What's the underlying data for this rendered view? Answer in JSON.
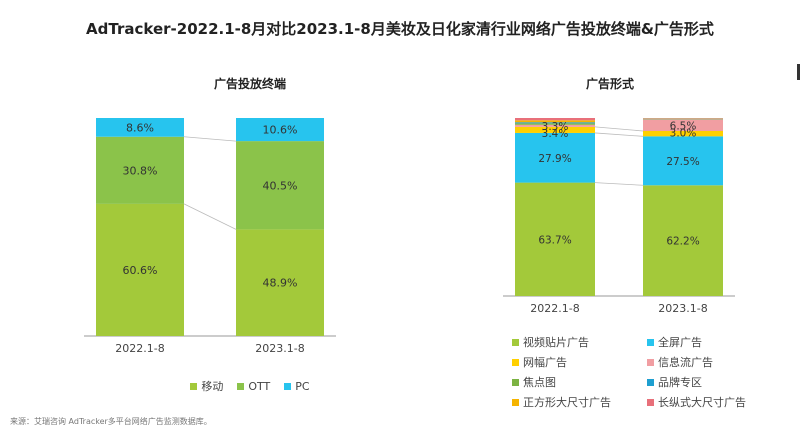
{
  "title": "AdTracker-2022.1-8月对比2023.1-8月美妆及日化家清行业网络广告投放终端&广告形式",
  "source": "来源：艾瑞咨询 AdTracker多平台网络广告监测数据库。",
  "chart_data": [
    {
      "type": "bar",
      "stacked": true,
      "title": "广告投放终端",
      "categories": [
        "2022.1-8",
        "2023.1-8"
      ],
      "ylim": [
        0,
        100
      ],
      "legend_position": "bottom",
      "series": [
        {
          "name": "移动",
          "color": "#a3c93a",
          "values": [
            60.6,
            48.9
          ]
        },
        {
          "name": "OTT",
          "color": "#8bc34a",
          "values": [
            30.8,
            40.5
          ]
        },
        {
          "name": "PC",
          "color": "#27c4ee",
          "values": [
            8.6,
            10.6
          ]
        }
      ]
    },
    {
      "type": "bar",
      "stacked": true,
      "title": "广告形式",
      "categories": [
        "2022.1-8",
        "2023.1-8"
      ],
      "ylim": [
        0,
        100
      ],
      "legend_position": "bottom",
      "series": [
        {
          "name": "视频贴片广告",
          "color": "#a3c93a",
          "values": [
            63.7,
            62.2
          ]
        },
        {
          "name": "全屏广告",
          "color": "#27c4ee",
          "values": [
            27.9,
            27.5
          ]
        },
        {
          "name": "网幅广告",
          "color": "#ffd000",
          "values": [
            3.4,
            3.0
          ]
        },
        {
          "name": "信息流广告",
          "color": "#f19ea2",
          "values": [
            1.2,
            6.5
          ]
        },
        {
          "name": "焦点图",
          "color": "#7cb342",
          "values": [
            0.8,
            0.2
          ]
        },
        {
          "name": "品牌专区",
          "color": "#1e9fd0",
          "values": [
            0.6,
            0.2
          ]
        },
        {
          "name": "正方形大尺寸广告",
          "color": "#f5b400",
          "values": [
            1.1,
            0.2
          ]
        },
        {
          "name": "长纵式大尺寸广告",
          "color": "#e8707a",
          "values": [
            1.3,
            0.2
          ]
        }
      ],
      "labels": [
        [
          "3.3%",
          "27.9%",
          "63.7%",
          "3.4%"
        ],
        [
          "6.5%",
          "27.5%",
          "62.2%",
          "3.0%"
        ]
      ]
    }
  ],
  "left_labels": [
    [
      "60.6%",
      "30.8%",
      "8.6%"
    ],
    [
      "48.9%",
      "40.5%",
      "10.6%"
    ]
  ]
}
